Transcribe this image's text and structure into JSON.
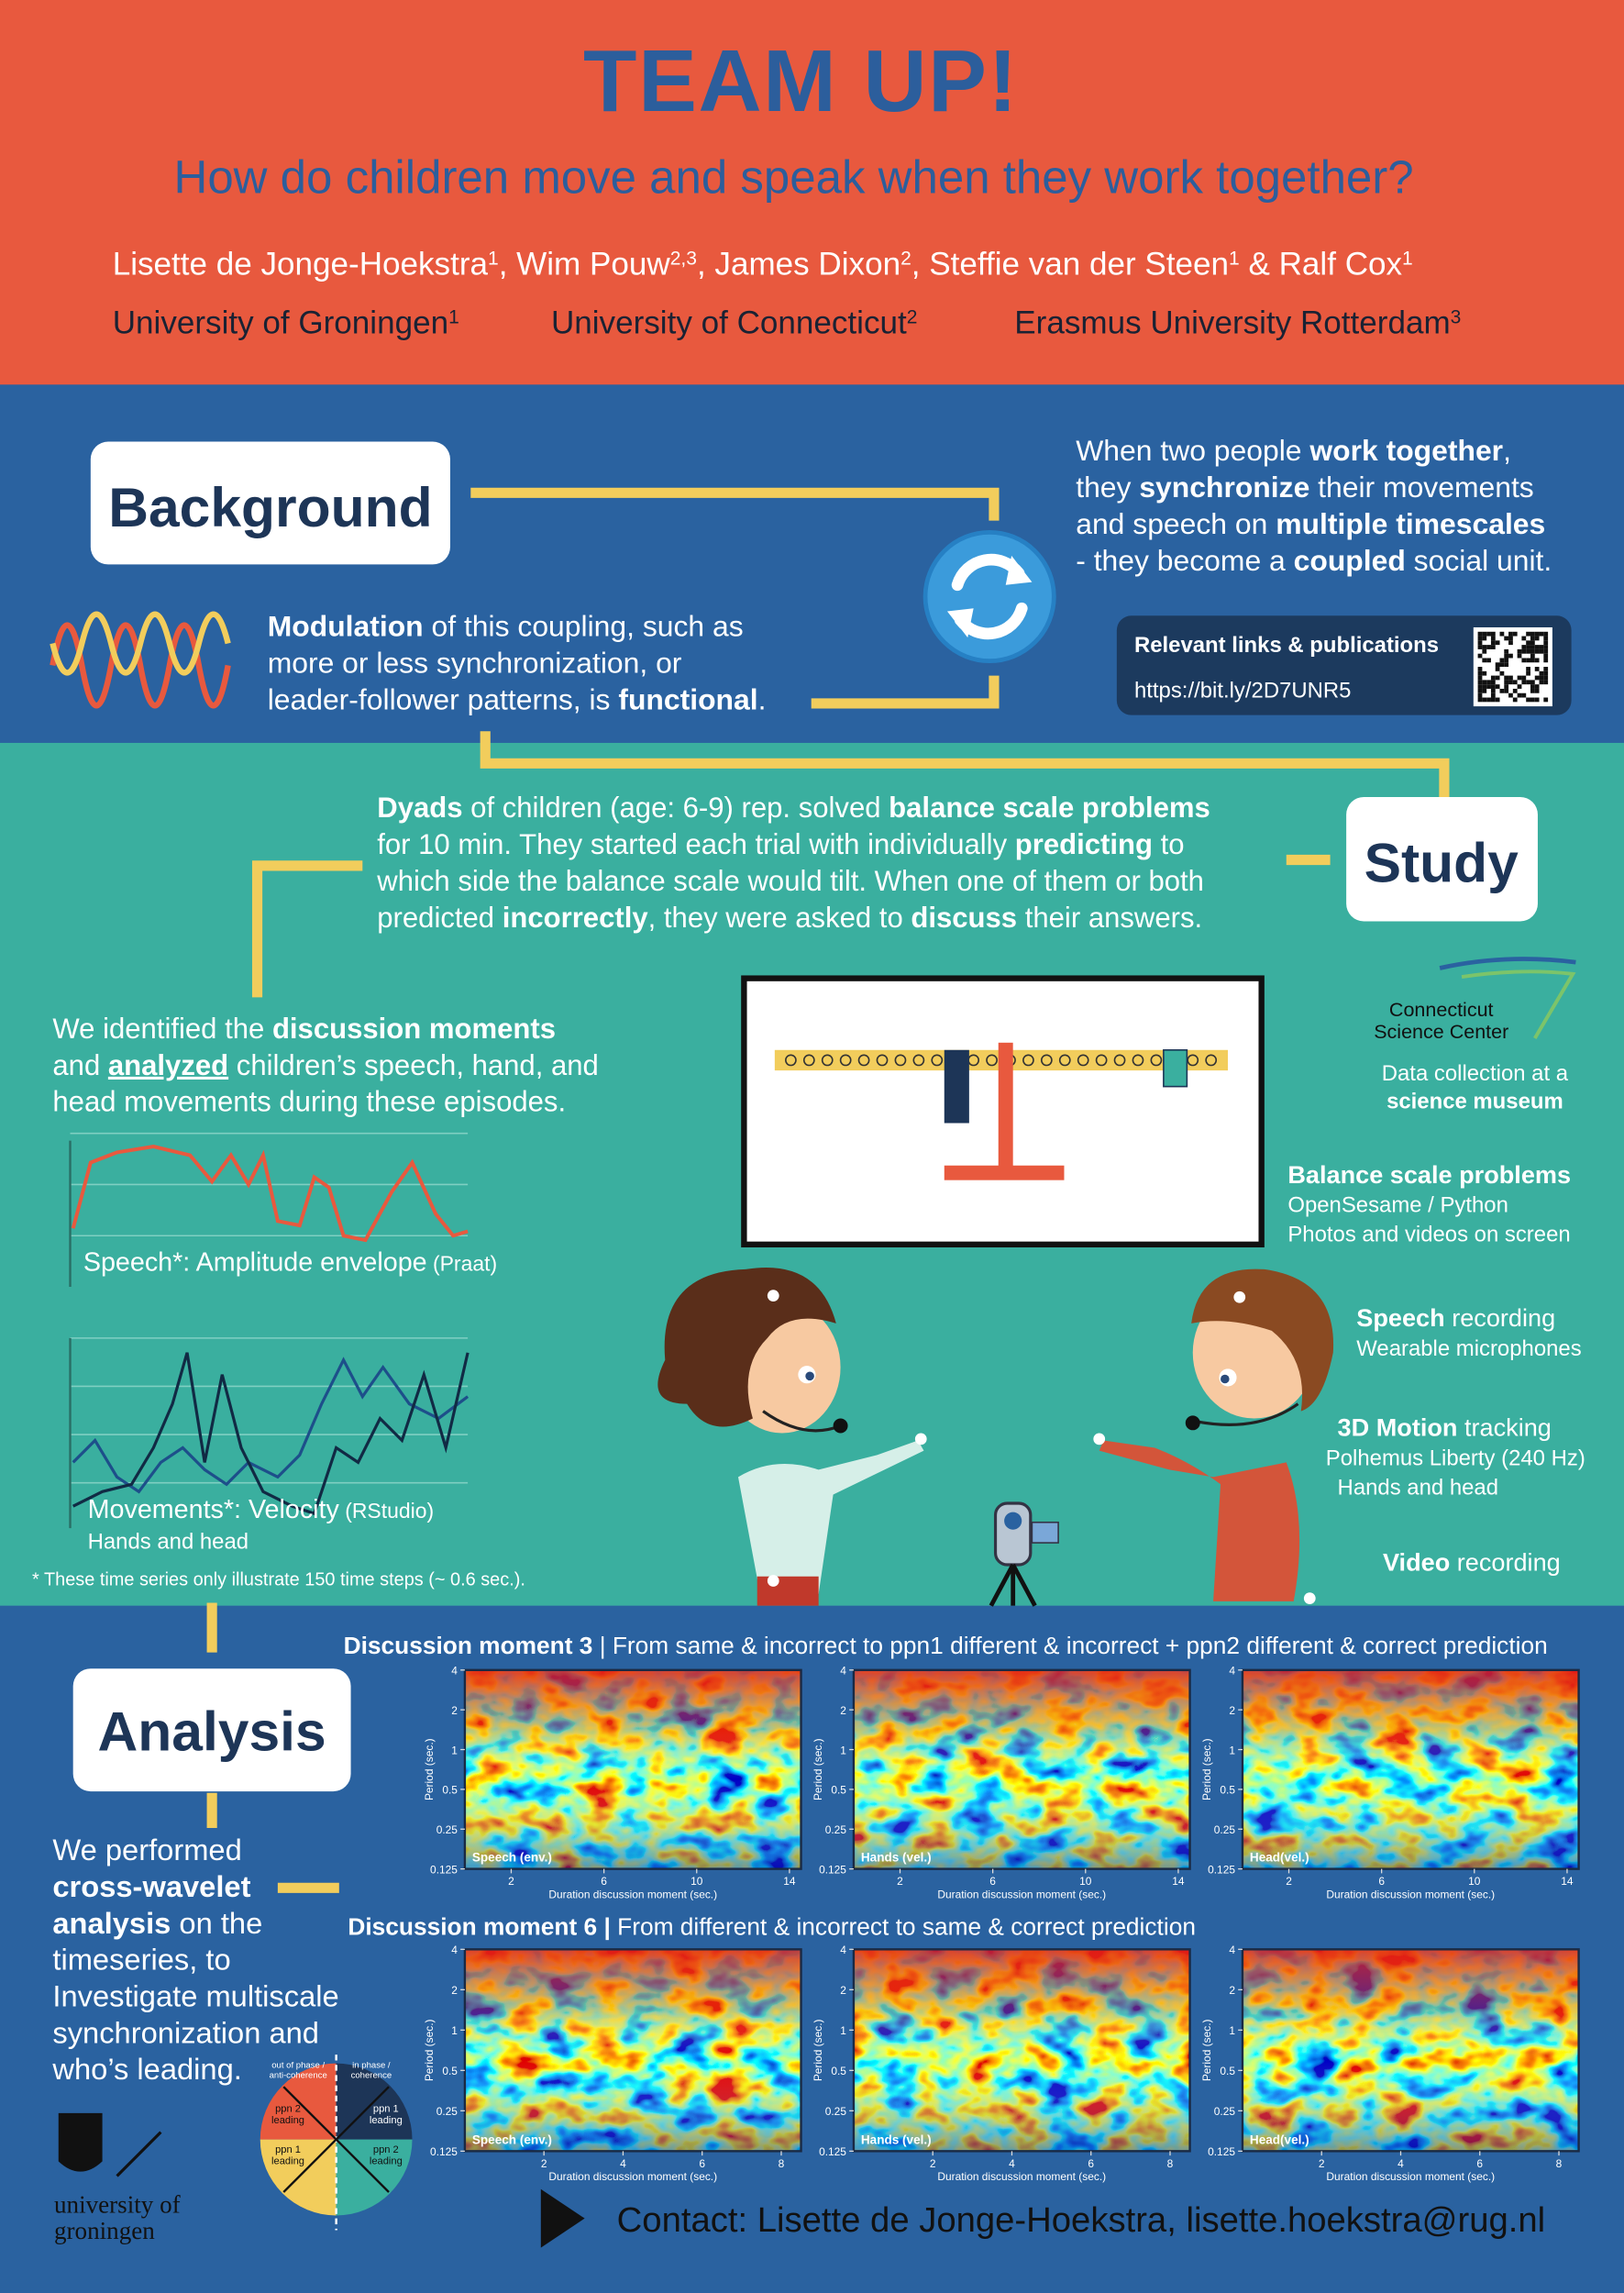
{
  "header": {
    "title": "TEAM UP!",
    "subtitle": "How do children move and speak when they work together?",
    "authors": [
      {
        "text": "Lisette de Jonge-Hoekstra"
      },
      {
        "text": "1",
        "style": "sup"
      },
      {
        "text": ", Wim Pouw"
      },
      {
        "text": "2,3",
        "style": "sup"
      },
      {
        "text": ", James Dixon"
      },
      {
        "text": "2",
        "style": "sup"
      },
      {
        "text": ", Steffie van der Steen"
      },
      {
        "text": "1",
        "style": "sup"
      },
      {
        "text": " & Ralf Cox"
      },
      {
        "text": "1",
        "style": "sup"
      }
    ],
    "affiliations": [
      [
        {
          "text": "University of Groningen"
        },
        {
          "text": "1",
          "style": "sup"
        }
      ],
      [
        {
          "text": "University of Connecticut"
        },
        {
          "text": "2",
          "style": "sup"
        }
      ],
      [
        {
          "text": "Erasmus University Rotterdam"
        },
        {
          "text": "3",
          "style": "sup"
        }
      ]
    ]
  },
  "background": {
    "heading": "Background",
    "right_text": [
      [
        {
          "text": "When two people "
        },
        {
          "text": "work together",
          "style": "bold"
        },
        {
          "text": ","
        }
      ],
      [
        {
          "text": "they "
        },
        {
          "text": "synchronize",
          "style": "bold"
        },
        {
          "text": " their movements"
        }
      ],
      [
        {
          "text": "and speech on "
        },
        {
          "text": "multiple timescales",
          "style": "bold"
        }
      ],
      [
        {
          "text": "- they become a "
        },
        {
          "text": "coupled",
          "style": "bold"
        },
        {
          "text": " social unit."
        }
      ]
    ],
    "left_text": [
      [
        {
          "text": "Modulation",
          "style": "bold"
        },
        {
          "text": " of this coupling, such as"
        }
      ],
      [
        {
          "text": "more or less synchronization, or"
        }
      ],
      [
        {
          "text": "leader-follower patterns, is "
        },
        {
          "text": "functional",
          "style": "bold"
        },
        {
          "text": "."
        }
      ]
    ],
    "links": {
      "title": "Relevant links & publications",
      "url": "https://bit.ly/2D7UNR5"
    }
  },
  "study": {
    "heading": "Study",
    "text": [
      [
        {
          "text": "Dyads",
          "style": "bold"
        },
        {
          "text": " of children (age: 6-9) rep. solved "
        },
        {
          "text": "balance scale problems",
          "style": "bold"
        }
      ],
      [
        {
          "text": "for 10 min. They started each trial with individually "
        },
        {
          "text": "predicting",
          "style": "bold"
        },
        {
          "text": " to"
        }
      ],
      [
        {
          "text": "which side the balance scale would tilt. When one of them or both"
        }
      ],
      [
        {
          "text": "predicted "
        },
        {
          "text": "incorrectly",
          "style": "bold"
        },
        {
          "text": ", they were asked to "
        },
        {
          "text": "discuss",
          "style": "bold"
        },
        {
          "text": " their answers."
        }
      ]
    ],
    "identified": [
      [
        {
          "text": "We identified the "
        },
        {
          "text": "discussion moments",
          "style": "bold"
        }
      ],
      [
        {
          "text": "and "
        },
        {
          "text": "analyzed",
          "style": "bold underline"
        },
        {
          "text": " children’s speech, hand, and"
        }
      ],
      [
        {
          "text": "head movements during these episodes."
        }
      ]
    ],
    "speech_label": [
      {
        "text": "Speech*:"
      },
      {
        "text": " Amplitude envelope"
      },
      {
        "text": " (Praat)",
        "style": "small"
      }
    ],
    "movement_label": [
      {
        "text": "Movements*:"
      },
      {
        "text": " Velocity"
      },
      {
        "text": " (RStudio)",
        "style": "small"
      }
    ],
    "movement_sub": "Hands and head",
    "footnote": "* These time series only illustrate 150 time steps (~ 0.6 sec.).",
    "museum_logo": [
      "Connecticut",
      "Science Center"
    ],
    "museum_caption": [
      [
        {
          "text": "Data collection at a"
        }
      ],
      [
        {
          "text": "science museum",
          "style": "bold"
        }
      ]
    ],
    "items": [
      [
        [
          {
            "text": "Balance scale problems",
            "style": "bold"
          }
        ],
        [
          {
            "text": "OpenSesame / Python"
          }
        ],
        [
          {
            "text": "Photos and videos on screen"
          }
        ]
      ],
      [
        [
          {
            "text": "Speech",
            "style": "bold"
          },
          {
            "text": " recording"
          }
        ],
        [
          {
            "text": "Wearable microphones"
          }
        ]
      ],
      [
        [
          {
            "text": "3D Motion",
            "style": "bold"
          },
          {
            "text": " tracking"
          }
        ],
        [
          {
            "text": "Polhemus Liberty (240 Hz)"
          }
        ],
        [
          {
            "text": "Hands and head"
          }
        ]
      ],
      [
        [
          {
            "text": "Video",
            "style": "bold"
          },
          {
            "text": " recording"
          }
        ]
      ]
    ]
  },
  "analysis": {
    "heading": "Analysis",
    "text": [
      [
        {
          "text": "We performed"
        }
      ],
      [
        {
          "text": "cross-wavelet",
          "style": "bold"
        }
      ],
      [
        {
          "text": "analysis",
          "style": "bold"
        },
        {
          "text": " on the"
        }
      ],
      [
        {
          "text": "timeseries, to"
        }
      ],
      [
        {
          "text": "Investigate multiscale"
        }
      ],
      [
        {
          "text": "synchronization and"
        }
      ],
      [
        {
          "text": "who’s leading."
        }
      ]
    ],
    "legend": {
      "out_of_phase": [
        "out of phase /",
        "anti-coherence"
      ],
      "in_phase": [
        "in phase /",
        "coherence"
      ],
      "quadrants": [
        [
          "ppn 2",
          "leading"
        ],
        [
          "ppn 1",
          "leading"
        ],
        [
          "ppn 1",
          "leading"
        ],
        [
          "ppn 2",
          "leading"
        ]
      ]
    },
    "moments": [
      {
        "title": [
          {
            "text": "Discussion moment 3",
            "style": "bold"
          },
          {
            "text": " | From same & incorrect to ppn1 different & incorrect +  ppn2 different & correct prediction"
          }
        ],
        "panels": [
          {
            "label": "Speech (env.)",
            "ylabel": "Period (sec.)",
            "xlabel": "Duration discussion moment (sec.)",
            "yscale": "log",
            "ylim": [
              0.125,
              4
            ],
            "yticks": [
              4,
              2,
              1,
              0.5,
              0.25,
              0.125
            ],
            "xlim": [
              0,
              14.5
            ],
            "xticks": [
              2,
              6,
              10,
              14
            ]
          },
          {
            "label": "Hands (vel.)",
            "ylabel": "Period (sec.)",
            "xlabel": "Duration discussion moment (sec.)",
            "yscale": "log",
            "ylim": [
              0.125,
              4
            ],
            "yticks": [
              4,
              2,
              1,
              0.5,
              0.25,
              0.125
            ],
            "xlim": [
              0,
              14.5
            ],
            "xticks": [
              2,
              6,
              10,
              14
            ]
          },
          {
            "label": "Head(vel.)",
            "ylabel": "Period (sec.)",
            "xlabel": "Duration discussion moment (sec.)",
            "yscale": "log",
            "ylim": [
              0.125,
              4
            ],
            "yticks": [
              4,
              2,
              1,
              0.5,
              0.25,
              0.125
            ],
            "xlim": [
              0,
              14.5
            ],
            "xticks": [
              2,
              6,
              10,
              14
            ]
          }
        ]
      },
      {
        "title": [
          {
            "text": "Discussion moment 6 |",
            "style": "bold"
          },
          {
            "text": " From different & incorrect to same & correct prediction"
          }
        ],
        "panels": [
          {
            "label": "Speech (env.)",
            "ylabel": "Period (sec.)",
            "xlabel": "Duration discussion moment (sec.)",
            "yscale": "log",
            "ylim": [
              0.125,
              4
            ],
            "yticks": [
              4,
              2,
              1,
              0.5,
              0.25,
              0.125
            ],
            "xlim": [
              0,
              8.5
            ],
            "xticks": [
              2,
              4,
              6,
              8
            ]
          },
          {
            "label": "Hands (vel.)",
            "ylabel": "Period (sec.)",
            "xlabel": "Duration discussion moment (sec.)",
            "yscale": "log",
            "ylim": [
              0.125,
              4
            ],
            "yticks": [
              4,
              2,
              1,
              0.5,
              0.25,
              0.125
            ],
            "xlim": [
              0,
              8.5
            ],
            "xticks": [
              2,
              4,
              6,
              8
            ]
          },
          {
            "label": "Head(vel.)",
            "ylabel": "Period (sec.)",
            "xlabel": "Duration discussion moment (sec.)",
            "yscale": "log",
            "ylim": [
              0.125,
              4
            ],
            "yticks": [
              4,
              2,
              1,
              0.5,
              0.25,
              0.125
            ],
            "xlim": [
              0,
              8.5
            ],
            "xticks": [
              2,
              4,
              6,
              8
            ]
          }
        ]
      }
    ],
    "university_logo": [
      "university of",
      "groningen"
    ]
  },
  "contact": "Contact: Lisette de Jonge-Hoekstra, lisette.hoekstra@rug.nl"
}
